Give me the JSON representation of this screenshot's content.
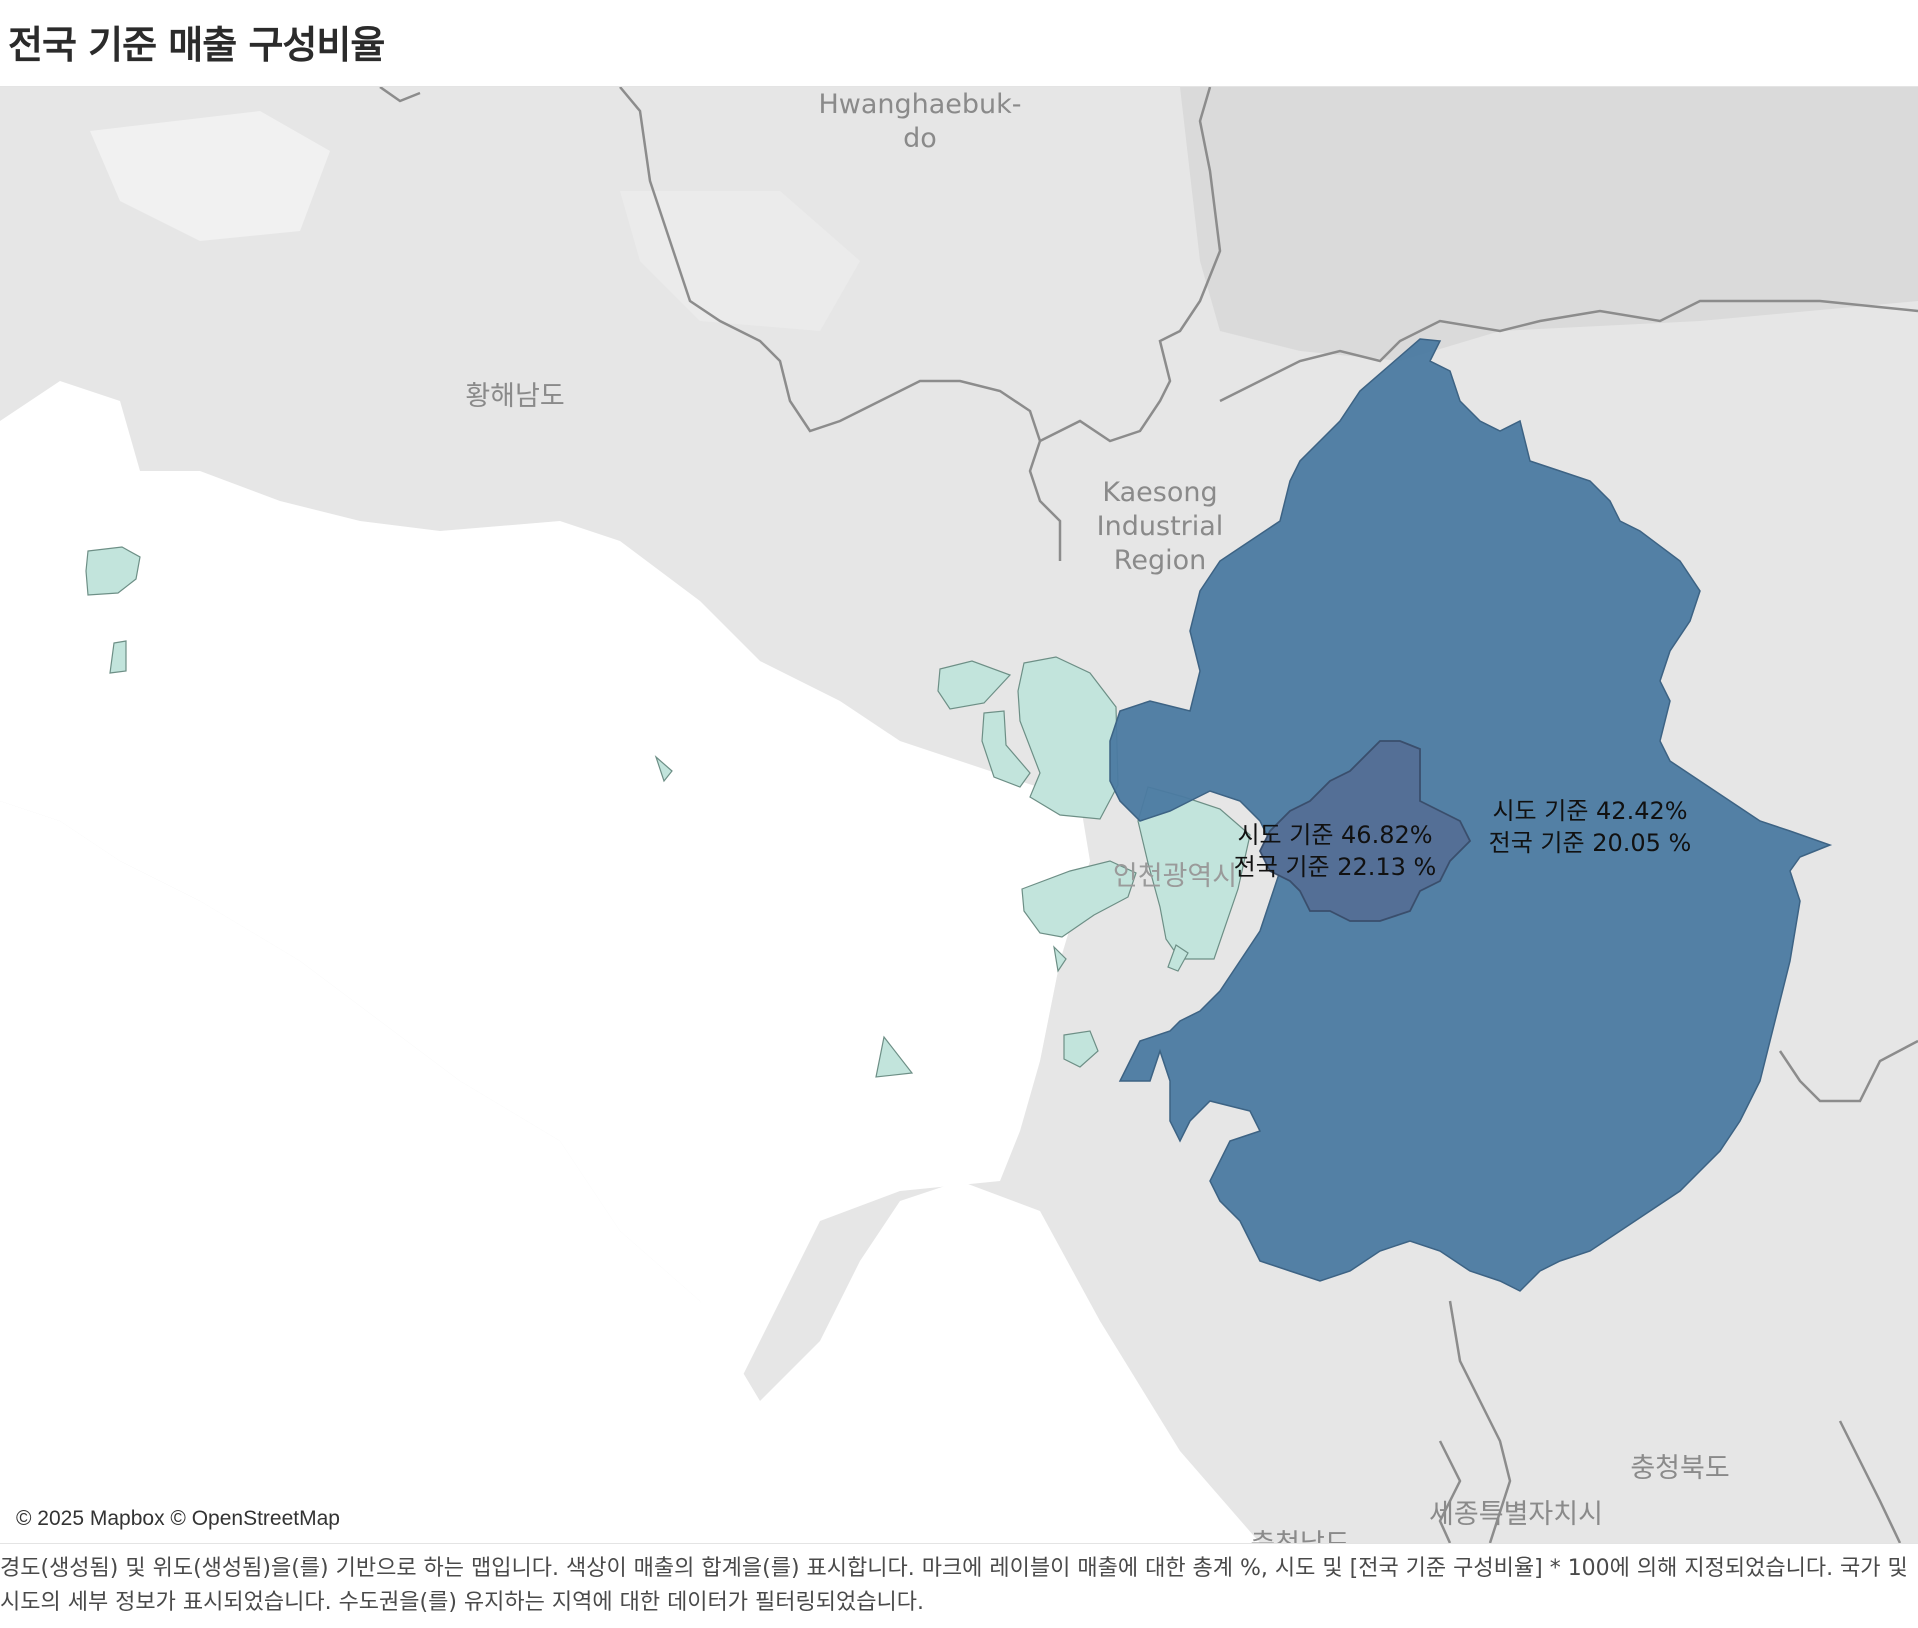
{
  "title": "전국 기준 매출 구성비율",
  "map": {
    "place_labels": {
      "hwanghaebukdo": [
        "Hwanghaebuk-",
        "do"
      ],
      "hwanghaenamdo": "황해남도",
      "kaesong": [
        "Kaesong",
        "Industrial",
        "Region"
      ],
      "incheon": "인천광역시",
      "chungbuk": "충청북도",
      "sejong": "세종특별자치시",
      "chungnam": "충청남도"
    },
    "regions": [
      {
        "name": "서울특별시",
        "share_sido_pct": 46.82,
        "share_national_pct": 22.13,
        "color": "#546f96"
      },
      {
        "name": "경기도",
        "share_sido_pct": 42.42,
        "share_national_pct": 20.05,
        "color": "#4b7aa1"
      },
      {
        "name": "인천광역시",
        "color": "#c2e4dc"
      }
    ],
    "seoul_label": [
      "시도 기준 46.82%",
      "전국 기준 22.13 %"
    ],
    "gyeonggi_label": [
      "시도 기준 42.42%",
      "전국 기준 20.05 %"
    ],
    "attribution": "© 2025 Mapbox © OpenStreetMap"
  },
  "caption": "경도(생성됨) 및 위도(생성됨)을(를) 기반으로 하는 맵입니다.  색상이 매출의 합계을(를) 표시합니다.  마크에 레이블이 매출에 대한 총계 %, 시도 및 [전국 기준 구성비율] * 100에 의해 지정되었습니다.  국가 및 시도의 세부 정보가 표시되었습니다. 수도권을(를) 유지하는 지역에 대한 데이터가 필터링되었습니다."
}
